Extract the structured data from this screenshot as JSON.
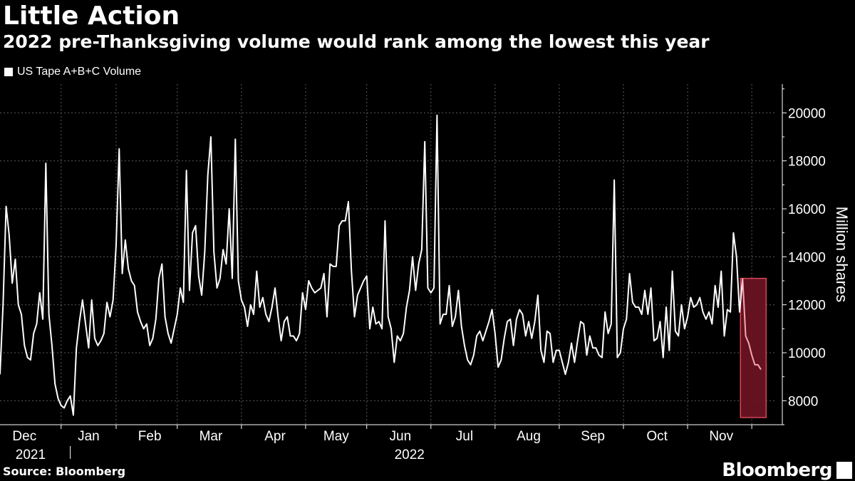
{
  "title": "Little Action",
  "subtitle": "2022 pre-Thanksgiving volume would rank among the lowest this year",
  "legend": {
    "label": "US Tape A+B+C Volume"
  },
  "source": "Source: Bloomberg",
  "brand": "Bloomberg",
  "colors": {
    "background": "#000000",
    "line": "#ffffff",
    "grid": "#5a5a5a",
    "highlight_fill": "#6b1322",
    "highlight_stroke": "#e34a5e",
    "highlight_line": "#f3a7b1"
  },
  "chart_data": {
    "type": "line",
    "title": "Little Action",
    "subtitle": "2022 pre-Thanksgiving volume would rank among the lowest this year",
    "xlabel": "",
    "ylabel": "Million shares",
    "ylim": [
      7000,
      21200
    ],
    "yticks": [
      8000,
      10000,
      12000,
      14000,
      16000,
      18000,
      20000
    ],
    "x_month_labels": [
      {
        "label": "Dec",
        "index": 8
      },
      {
        "label": "Jan",
        "index": 29
      },
      {
        "label": "Feb",
        "index": 49
      },
      {
        "label": "Mar",
        "index": 69
      },
      {
        "label": "Apr",
        "index": 90
      },
      {
        "label": "May",
        "index": 110
      },
      {
        "label": "Jun",
        "index": 131
      },
      {
        "label": "Jul",
        "index": 152
      },
      {
        "label": "Aug",
        "index": 173
      },
      {
        "label": "Sep",
        "index": 194
      },
      {
        "label": "Oct",
        "index": 215
      },
      {
        "label": "Nov",
        "index": 236
      }
    ],
    "x_month_boundaries": [
      20,
      38,
      58,
      79,
      100,
      120,
      141,
      162,
      183,
      204,
      225,
      246
    ],
    "year_labels": [
      {
        "label": "2021",
        "index": 10
      },
      {
        "label": "2022",
        "index": 134
      }
    ],
    "year_divider_index": 23,
    "grid": true,
    "legend_position": "top-left",
    "series": [
      {
        "name": "US Tape A+B+C Volume",
        "values": [
          9100,
          12000,
          16100,
          14900,
          12900,
          13900,
          12000,
          11600,
          10300,
          9800,
          9700,
          10800,
          11200,
          12500,
          11400,
          17900,
          11600,
          10300,
          8700,
          8100,
          7800,
          7700,
          8000,
          8200,
          7400,
          10200,
          11300,
          12200,
          11200,
          10200,
          12200,
          10600,
          10300,
          10500,
          10800,
          12100,
          11500,
          12200,
          14500,
          18500,
          13300,
          14700,
          13500,
          13000,
          12800,
          11700,
          11300,
          11000,
          11200,
          10300,
          10600,
          11400,
          13100,
          13700,
          11500,
          10800,
          10400,
          11000,
          11600,
          12700,
          12100,
          17600,
          12600,
          15000,
          15300,
          13200,
          12400,
          14200,
          17400,
          19000,
          14200,
          12700,
          13100,
          14300,
          13700,
          16000,
          13100,
          18900,
          13000,
          12200,
          11900,
          11100,
          12000,
          11600,
          13400,
          11900,
          12300,
          11600,
          11300,
          11900,
          12700,
          11500,
          10500,
          11300,
          11500,
          10700,
          10700,
          10500,
          10800,
          12500,
          11800,
          13000,
          12700,
          12500,
          12600,
          12700,
          13300,
          11500,
          13700,
          13600,
          13600,
          15300,
          15500,
          15500,
          16300,
          13400,
          11500,
          12400,
          12700,
          13000,
          13200,
          11000,
          11900,
          11200,
          11300,
          11000,
          15500,
          11500,
          11000,
          9600,
          10700,
          10500,
          10800,
          11900,
          12600,
          14000,
          12600,
          13700,
          14300,
          18800,
          12700,
          12500,
          12700,
          19900,
          11200,
          11600,
          11600,
          12800,
          11100,
          11500,
          12600,
          11100,
          10300,
          9700,
          9500,
          9900,
          10700,
          10900,
          10500,
          10900,
          11300,
          11800,
          10800,
          9400,
          9700,
          10600,
          11300,
          11400,
          10300,
          11400,
          11800,
          11600,
          10700,
          11300,
          10600,
          11300,
          12400,
          10100,
          9600,
          10900,
          10800,
          9600,
          10100,
          10100,
          9600,
          9100,
          9600,
          10400,
          9600,
          10500,
          11300,
          11200,
          9900,
          10700,
          10200,
          10200,
          9900,
          9800,
          11700,
          10800,
          11200,
          17200,
          9800,
          10000,
          11000,
          11400,
          13300,
          12100,
          11900,
          11900,
          11600,
          12600,
          11600,
          12700,
          10500,
          10600,
          11300,
          9800,
          11900,
          10100,
          13400,
          10900,
          10700,
          12000,
          11000,
          11500,
          12300,
          11900,
          12000,
          12300,
          11700,
          11400,
          11700,
          11200,
          12800,
          11900,
          13400,
          10700,
          11800,
          11700,
          15000,
          14000,
          11700,
          13100,
          10700,
          10400,
          9900,
          9500,
          9500,
          9300
        ]
      }
    ],
    "highlight": {
      "start_index": 243,
      "end_index": 250,
      "y_range": [
        7300,
        13100
      ],
      "description": "pre-Thanksgiving window"
    }
  }
}
